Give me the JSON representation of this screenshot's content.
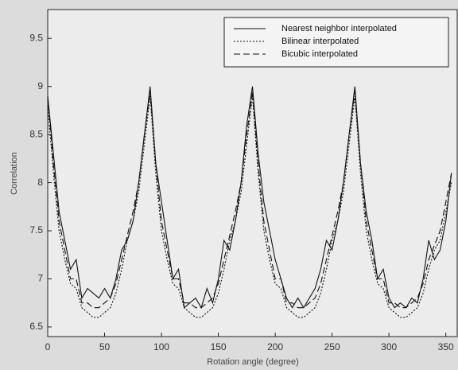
{
  "chart_data": {
    "type": "line",
    "xlabel": "Rotation angle (degree)",
    "ylabel": "Correlation",
    "x": [
      0,
      5,
      10,
      15,
      20,
      25,
      30,
      35,
      40,
      45,
      50,
      55,
      60,
      65,
      70,
      75,
      80,
      85,
      90,
      95,
      100,
      105,
      110,
      115,
      120,
      125,
      130,
      135,
      140,
      145,
      150,
      155,
      160,
      165,
      170,
      175,
      180,
      185,
      190,
      195,
      200,
      205,
      210,
      215,
      220,
      225,
      230,
      235,
      240,
      245,
      250,
      255,
      260,
      265,
      270,
      275,
      280,
      285,
      290,
      295,
      300,
      305,
      310,
      315,
      320,
      325,
      330,
      335,
      340,
      345,
      350,
      355
    ],
    "series": [
      {
        "name": "Nearest neighbor interpolated",
        "color": "#111111",
        "dash": "solid",
        "values": [
          8.9,
          8.3,
          7.7,
          7.4,
          7.1,
          7.2,
          6.8,
          6.9,
          6.85,
          6.8,
          6.9,
          6.8,
          7.0,
          7.3,
          7.4,
          7.6,
          8.0,
          8.5,
          9.0,
          8.2,
          7.8,
          7.4,
          7.0,
          7.1,
          6.7,
          6.75,
          6.8,
          6.7,
          6.9,
          6.75,
          7.0,
          7.4,
          7.3,
          7.6,
          8.0,
          8.6,
          9.0,
          8.3,
          7.8,
          7.5,
          7.2,
          7.0,
          6.8,
          6.7,
          6.8,
          6.7,
          6.8,
          6.9,
          7.1,
          7.4,
          7.3,
          7.6,
          8.0,
          8.5,
          9.0,
          8.2,
          7.7,
          7.4,
          7.0,
          7.1,
          6.8,
          6.7,
          6.75,
          6.7,
          6.8,
          6.75,
          7.0,
          7.4,
          7.2,
          7.3,
          7.6,
          8.1
        ]
      },
      {
        "name": "Bilinear interpolated",
        "color": "#111111",
        "dash": "dotted",
        "values": [
          8.8,
          8.1,
          7.5,
          7.2,
          6.95,
          6.9,
          6.7,
          6.65,
          6.6,
          6.6,
          6.65,
          6.7,
          6.85,
          7.1,
          7.4,
          7.6,
          7.9,
          8.4,
          8.9,
          8.1,
          7.5,
          7.2,
          6.95,
          6.9,
          6.7,
          6.65,
          6.6,
          6.6,
          6.65,
          6.7,
          6.85,
          7.1,
          7.4,
          7.6,
          7.9,
          8.4,
          8.9,
          8.1,
          7.5,
          7.2,
          6.95,
          6.9,
          6.7,
          6.65,
          6.6,
          6.6,
          6.65,
          6.7,
          6.85,
          7.1,
          7.4,
          7.6,
          7.9,
          8.4,
          8.9,
          8.1,
          7.5,
          7.2,
          6.95,
          6.9,
          6.7,
          6.65,
          6.6,
          6.6,
          6.65,
          6.7,
          6.85,
          7.1,
          7.3,
          7.4,
          7.7,
          8.0
        ]
      },
      {
        "name": "Bicubic interpolated",
        "color": "#111111",
        "dash": "dashed",
        "values": [
          8.9,
          8.2,
          7.6,
          7.3,
          7.0,
          7.0,
          6.75,
          6.75,
          6.7,
          6.7,
          6.75,
          6.8,
          6.95,
          7.2,
          7.45,
          7.7,
          8.0,
          8.5,
          8.95,
          8.2,
          7.6,
          7.3,
          7.0,
          7.0,
          6.75,
          6.75,
          6.7,
          6.7,
          6.75,
          6.8,
          6.95,
          7.2,
          7.45,
          7.7,
          8.0,
          8.5,
          8.95,
          8.2,
          7.6,
          7.3,
          7.0,
          7.0,
          6.75,
          6.75,
          6.7,
          6.7,
          6.75,
          6.8,
          6.95,
          7.2,
          7.45,
          7.7,
          8.0,
          8.5,
          8.95,
          8.2,
          7.6,
          7.3,
          7.0,
          7.0,
          6.75,
          6.75,
          6.7,
          6.7,
          6.75,
          6.8,
          6.95,
          7.2,
          7.35,
          7.5,
          7.8,
          8.1
        ]
      }
    ],
    "xlim": [
      0,
      360
    ],
    "xticks": [
      0,
      50,
      100,
      150,
      200,
      250,
      300,
      350
    ],
    "ylim": [
      6.4,
      9.8
    ],
    "yticks": [
      6.5,
      7,
      7.5,
      8,
      8.5,
      9,
      9.5
    ],
    "grid": false,
    "legend": "upper right"
  }
}
